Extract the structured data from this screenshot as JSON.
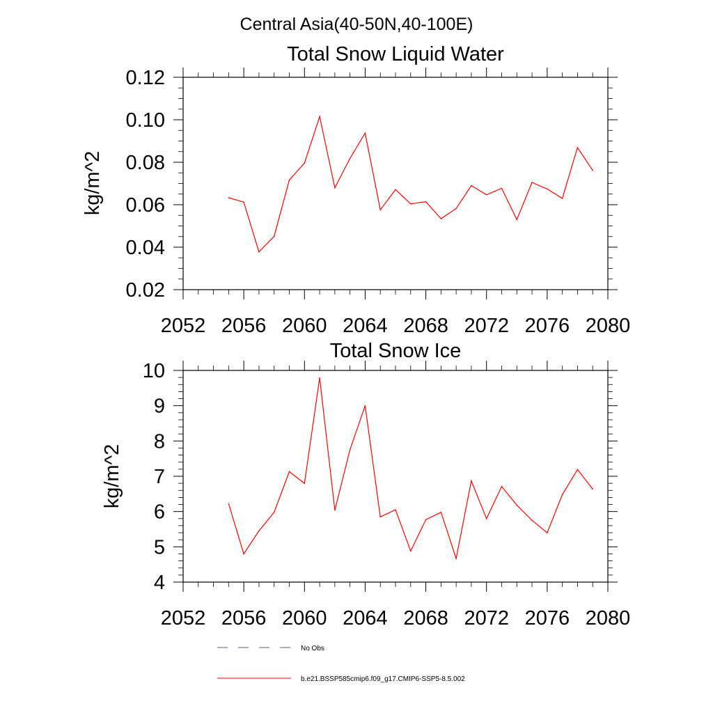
{
  "figure": {
    "title": "Central Asia(40-50N,40-100E)"
  },
  "legend": {
    "items": [
      {
        "label": "No Obs",
        "color": "#5a5a8c",
        "style": "dashed"
      },
      {
        "label": "b.e21.BSSP585cmip6.f09_g17.CMIP6-SSP5-8.5.002",
        "color": "#ff0000",
        "style": "solid"
      }
    ]
  },
  "chart_data": [
    {
      "type": "line",
      "title": "Total Snow Liquid Water",
      "xlabel": "",
      "ylabel": "kg/m^2",
      "xlim": [
        2052,
        2080
      ],
      "ylim": [
        0.02,
        0.12
      ],
      "xticks": [
        2052,
        2056,
        2060,
        2064,
        2068,
        2072,
        2076,
        2080
      ],
      "xtick_labels": [
        "2052",
        "2056",
        "2060",
        "2064",
        "2068",
        "2072",
        "2076",
        "2080"
      ],
      "yticks": [
        0.02,
        0.04,
        0.06,
        0.08,
        0.1,
        0.12
      ],
      "ytick_labels": [
        "0.02",
        "0.04",
        "0.06",
        "0.08",
        "0.10",
        "0.12"
      ],
      "grid": false,
      "series": [
        {
          "name": "b.e21.BSSP585cmip6.f09_g17.CMIP6-SSP5-8.5.002",
          "color": "#ff0000",
          "x": [
            2055,
            2056,
            2057,
            2058,
            2059,
            2060,
            2061,
            2062,
            2063,
            2064,
            2065,
            2066,
            2067,
            2068,
            2069,
            2070,
            2071,
            2072,
            2073,
            2074,
            2075,
            2076,
            2077,
            2078,
            2079
          ],
          "y": [
            0.0633,
            0.0612,
            0.0378,
            0.0451,
            0.0716,
            0.0796,
            0.1015,
            0.068,
            0.0818,
            0.0937,
            0.0576,
            0.0671,
            0.0604,
            0.0614,
            0.0534,
            0.0582,
            0.069,
            0.0647,
            0.0677,
            0.053,
            0.0705,
            0.0674,
            0.063,
            0.0869,
            0.0762
          ]
        }
      ]
    },
    {
      "type": "line",
      "title": "Total Snow Ice",
      "xlabel": "",
      "ylabel": "kg/m^2",
      "xlim": [
        2052,
        2080
      ],
      "ylim": [
        4,
        10
      ],
      "xticks": [
        2052,
        2056,
        2060,
        2064,
        2068,
        2072,
        2076,
        2080
      ],
      "xtick_labels": [
        "2052",
        "2056",
        "2060",
        "2064",
        "2068",
        "2072",
        "2076",
        "2080"
      ],
      "yticks": [
        4,
        5,
        6,
        7,
        8,
        9,
        10
      ],
      "ytick_labels": [
        "4",
        "5",
        "6",
        "7",
        "8",
        "9",
        "10"
      ],
      "grid": false,
      "series": [
        {
          "name": "b.e21.BSSP585cmip6.f09_g17.CMIP6-SSP5-8.5.002",
          "color": "#ff0000",
          "x": [
            2055,
            2056,
            2057,
            2058,
            2059,
            2060,
            2061,
            2062,
            2063,
            2064,
            2065,
            2066,
            2067,
            2068,
            2069,
            2070,
            2071,
            2072,
            2073,
            2074,
            2075,
            2076,
            2077,
            2078,
            2079
          ],
          "y": [
            6.22,
            4.8,
            5.45,
            5.98,
            7.13,
            6.8,
            9.79,
            6.04,
            7.75,
            9.0,
            5.85,
            6.05,
            4.88,
            5.77,
            5.98,
            4.67,
            6.87,
            5.8,
            6.71,
            6.18,
            5.75,
            5.4,
            6.48,
            7.19,
            6.64
          ]
        }
      ]
    }
  ]
}
